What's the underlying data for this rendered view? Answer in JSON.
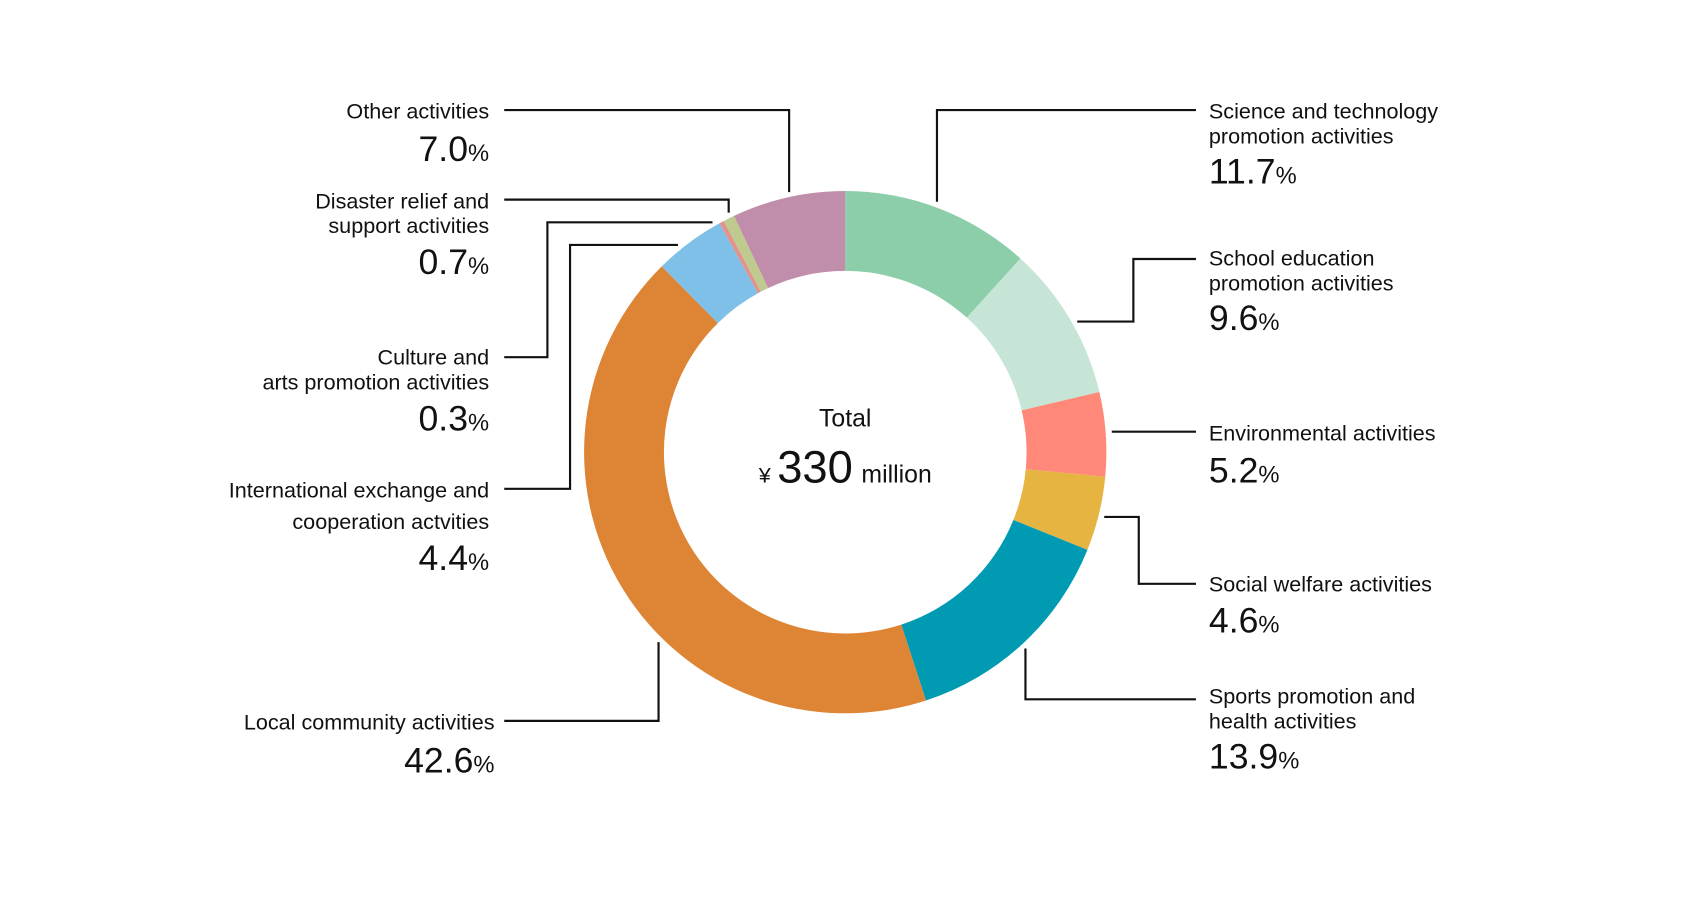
{
  "chart_data": {
    "type": "pie",
    "variant": "donut",
    "center": {
      "title": "Total",
      "currency": "¥",
      "amount": "330",
      "unit": "million"
    },
    "unit_symbol": "%",
    "slices": [
      {
        "label": [
          "Science and technology",
          "promotion activities"
        ],
        "value": 11.7,
        "display": "11.7",
        "color": "#8ccdaa",
        "side": "right"
      },
      {
        "label": [
          "School education",
          "promotion activities"
        ],
        "value": 9.6,
        "display": "9.6",
        "color": "#c6e5d6",
        "side": "right"
      },
      {
        "label": [
          "Environmental activities"
        ],
        "value": 5.2,
        "display": "5.2",
        "color": "#ff8878",
        "side": "right"
      },
      {
        "label": [
          "Social welfare activities"
        ],
        "value": 4.6,
        "display": "4.6",
        "color": "#e6b441",
        "side": "right"
      },
      {
        "label": [
          "Sports promotion and",
          "health activities"
        ],
        "value": 13.9,
        "display": "13.9",
        "color": "#009bb2",
        "side": "right"
      },
      {
        "label": [
          "Local community activities"
        ],
        "value": 42.6,
        "display": "42.6",
        "color": "#de8535",
        "side": "left"
      },
      {
        "label": [
          "International exchange and",
          "cooperation actvities"
        ],
        "value": 4.4,
        "display": "4.4",
        "color": "#7fc0e8",
        "side": "left"
      },
      {
        "label": [
          "Culture and",
          "arts promotion activities"
        ],
        "value": 0.3,
        "display": "0.3",
        "color": "#e0948e",
        "side": "left"
      },
      {
        "label": [
          "Disaster relief and",
          "support activities"
        ],
        "value": 0.7,
        "display": "0.7",
        "color": "#bfcb8e",
        "side": "left"
      },
      {
        "label": [
          "Other activities"
        ],
        "value": 7.0,
        "display": "7.0",
        "color": "#c08dab",
        "side": "left"
      }
    ]
  }
}
